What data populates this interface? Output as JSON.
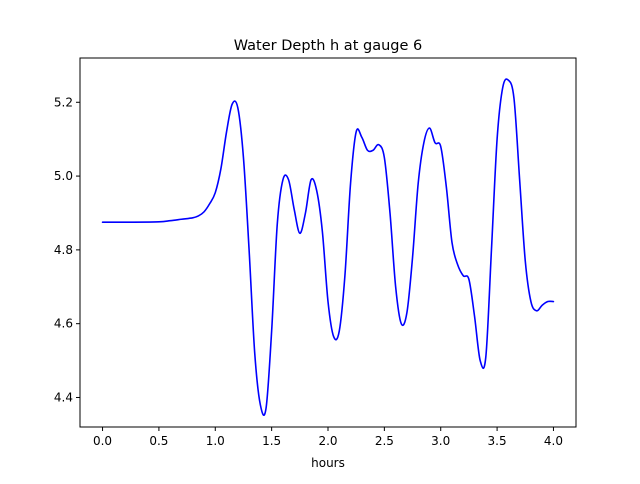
{
  "chart_data": {
    "type": "line",
    "title": "Water Depth h at gauge 6",
    "xlabel": "hours",
    "ylabel": "",
    "xlim": [
      -0.2,
      4.2
    ],
    "ylim": [
      4.32,
      5.32
    ],
    "x_ticks": [
      0.0,
      0.5,
      1.0,
      1.5,
      2.0,
      2.5,
      3.0,
      3.5,
      4.0
    ],
    "x_tick_labels": [
      "0.0",
      "0.5",
      "1.0",
      "1.5",
      "2.0",
      "2.5",
      "3.0",
      "3.5",
      "4.0"
    ],
    "y_ticks": [
      4.4,
      4.6,
      4.8,
      5.0,
      5.2
    ],
    "y_tick_labels": [
      "4.4",
      "4.6",
      "4.8",
      "5.0",
      "5.2"
    ],
    "grid": false,
    "legend": "none",
    "series": [
      {
        "color": "#0000ff",
        "x": [
          0.0,
          0.25,
          0.5,
          0.6,
          0.7,
          0.8,
          0.85,
          0.9,
          0.95,
          1.0,
          1.05,
          1.1,
          1.15,
          1.2,
          1.25,
          1.3,
          1.35,
          1.4,
          1.45,
          1.5,
          1.55,
          1.6,
          1.65,
          1.7,
          1.75,
          1.8,
          1.85,
          1.9,
          1.95,
          2.0,
          2.05,
          2.1,
          2.15,
          2.2,
          2.25,
          2.3,
          2.35,
          2.4,
          2.45,
          2.5,
          2.55,
          2.6,
          2.65,
          2.7,
          2.75,
          2.8,
          2.85,
          2.9,
          2.95,
          3.0,
          3.05,
          3.1,
          3.15,
          3.2,
          3.25,
          3.3,
          3.35,
          3.4,
          3.45,
          3.5,
          3.55,
          3.6,
          3.65,
          3.7,
          3.75,
          3.8,
          3.85,
          3.9,
          3.95,
          4.0
        ],
        "y": [
          4.875,
          4.875,
          4.876,
          4.879,
          4.883,
          4.887,
          4.892,
          4.903,
          4.925,
          4.955,
          5.02,
          5.12,
          5.195,
          5.185,
          5.05,
          4.8,
          4.52,
          4.38,
          4.37,
          4.58,
          4.87,
          4.99,
          4.99,
          4.91,
          4.845,
          4.9,
          4.99,
          4.96,
          4.85,
          4.66,
          4.565,
          4.58,
          4.73,
          4.98,
          5.12,
          5.105,
          5.07,
          5.07,
          5.085,
          5.05,
          4.9,
          4.7,
          4.6,
          4.63,
          4.78,
          4.98,
          5.09,
          5.13,
          5.09,
          5.08,
          4.97,
          4.82,
          4.76,
          4.73,
          4.72,
          4.62,
          4.5,
          4.51,
          4.8,
          5.1,
          5.24,
          5.26,
          5.21,
          4.99,
          4.77,
          4.66,
          4.635,
          4.65,
          4.66,
          4.66
        ]
      }
    ]
  }
}
